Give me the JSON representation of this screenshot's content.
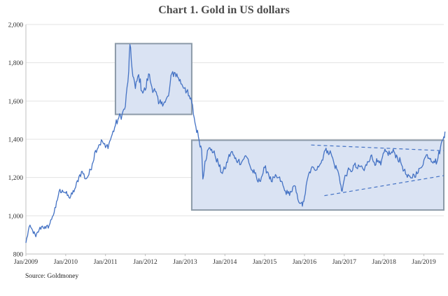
{
  "chart_data": {
    "type": "line",
    "title": "Chart 1. Gold in US dollars",
    "source": "Source: Goldmoney",
    "xlabel": "",
    "ylabel": "",
    "ylim": [
      800,
      2000
    ],
    "yticks": [
      800,
      1000,
      1200,
      1400,
      1600,
      1800,
      2000
    ],
    "ytick_labels": [
      "800",
      "1,000",
      "1,200",
      "1,400",
      "1,600",
      "1,800",
      "2,000"
    ],
    "xlim": [
      "2009-01",
      "2019-07"
    ],
    "xticks": [
      "2009-01",
      "2010-01",
      "2011-01",
      "2012-01",
      "2013-01",
      "2014-01",
      "2015-01",
      "2016-01",
      "2017-01",
      "2018-01",
      "2019-01"
    ],
    "xtick_labels": [
      "Jan/2009",
      "Jan/2010",
      "Jan/2011",
      "Jan/2012",
      "Jan/2013",
      "Jan/2014",
      "Jan/2015",
      "Jan/2016",
      "Jan/2017",
      "Jan/2018",
      "Jan/2019"
    ],
    "grid": "horizontal",
    "legend": "none",
    "colors": {
      "line": "#4472c4",
      "box_fill": "#dae3f3",
      "box_stroke": "#8c9aa8",
      "grid": "#e3e3e3",
      "axis": "#bfbfbf"
    },
    "series": [
      {
        "x": [
          "2009-01",
          "2009-02",
          "2009-03",
          "2009-04",
          "2009-05",
          "2009-06",
          "2009-07",
          "2009-08",
          "2009-09",
          "2009-10",
          "2009-11",
          "2009-12",
          "2010-01",
          "2010-02",
          "2010-03",
          "2010-04",
          "2010-05",
          "2010-06",
          "2010-07",
          "2010-08",
          "2010-09",
          "2010-10",
          "2010-11",
          "2010-12",
          "2011-01",
          "2011-02",
          "2011-03",
          "2011-04",
          "2011-05",
          "2011-06",
          "2011-07",
          "2011-08",
          "2011-09",
          "2011-10",
          "2011-11",
          "2011-12",
          "2012-01",
          "2012-02",
          "2012-03",
          "2012-04",
          "2012-05",
          "2012-06",
          "2012-07",
          "2012-08",
          "2012-09",
          "2012-10",
          "2012-11",
          "2012-12",
          "2013-01",
          "2013-02",
          "2013-03",
          "2013-04",
          "2013-05",
          "2013-06",
          "2013-07",
          "2013-08",
          "2013-09",
          "2013-10",
          "2013-11",
          "2013-12",
          "2014-01",
          "2014-02",
          "2014-03",
          "2014-04",
          "2014-05",
          "2014-06",
          "2014-07",
          "2014-08",
          "2014-09",
          "2014-10",
          "2014-11",
          "2014-12",
          "2015-01",
          "2015-02",
          "2015-03",
          "2015-04",
          "2015-05",
          "2015-06",
          "2015-07",
          "2015-08",
          "2015-09",
          "2015-10",
          "2015-11",
          "2015-12",
          "2016-01",
          "2016-02",
          "2016-03",
          "2016-04",
          "2016-05",
          "2016-06",
          "2016-07",
          "2016-08",
          "2016-09",
          "2016-10",
          "2016-11",
          "2016-12",
          "2017-01",
          "2017-02",
          "2017-03",
          "2017-04",
          "2017-05",
          "2017-06",
          "2017-07",
          "2017-08",
          "2017-09",
          "2017-10",
          "2017-11",
          "2017-12",
          "2018-01",
          "2018-02",
          "2018-03",
          "2018-04",
          "2018-05",
          "2018-06",
          "2018-07",
          "2018-08",
          "2018-09",
          "2018-10",
          "2018-11",
          "2018-12",
          "2019-01",
          "2019-02",
          "2019-03",
          "2019-04",
          "2019-05",
          "2019-06",
          "2019-07"
        ],
        "values": [
          858,
          943,
          924,
          890,
          928,
          946,
          934,
          949,
          996,
          1043,
          1127,
          1134,
          1118,
          1095,
          1113,
          1149,
          1205,
          1232,
          1193,
          1215,
          1271,
          1342,
          1370,
          1391,
          1356,
          1374,
          1424,
          1473,
          1512,
          1529,
          1572,
          1756,
          1771,
          1665,
          1738,
          1652,
          1656,
          1742,
          1673,
          1650,
          1585,
          1596,
          1593,
          1626,
          1744,
          1747,
          1721,
          1688,
          1670,
          1627,
          1593,
          1485,
          1414,
          1343,
          1286,
          1347,
          1348,
          1316,
          1275,
          1225,
          1244,
          1300,
          1336,
          1299,
          1288,
          1279,
          1311,
          1296,
          1239,
          1222,
          1176,
          1201,
          1251,
          1227,
          1179,
          1199,
          1199,
          1181,
          1131,
          1117,
          1125,
          1157,
          1086,
          1068,
          1097,
          1199,
          1246,
          1242,
          1259,
          1276,
          1337,
          1340,
          1326,
          1267,
          1238,
          1157,
          1192,
          1234,
          1231,
          1266,
          1246,
          1260,
          1236,
          1283,
          1314,
          1280,
          1282,
          1265,
          1331,
          1330,
          1325,
          1335,
          1304,
          1281,
          1238,
          1201,
          1198,
          1215,
          1220,
          1250,
          1291,
          1320,
          1300,
          1286,
          1284,
          1359,
          1413
        ],
        "annotations": [
          {
            "x": "2011-08",
            "y": 1895
          },
          {
            "x": "2013-06",
            "y": 1192
          },
          {
            "x": "2015-12",
            "y": 1050
          },
          {
            "x": "2016-12",
            "y": 1128
          },
          {
            "x": "2019-07",
            "y": 1440
          }
        ]
      }
    ],
    "boxes": [
      {
        "x_start": "2011-04",
        "x_end": "2013-03",
        "y_low": 1530,
        "y_high": 1900
      },
      {
        "x_start": "2013-03",
        "x_end": "2019-07",
        "y_low": 1030,
        "y_high": 1395
      }
    ],
    "trendlines": [
      {
        "x_start": "2016-03",
        "y_start": 1370,
        "x_end": "2019-07",
        "y_end": 1340
      },
      {
        "x_start": "2016-07",
        "y_start": 1105,
        "x_end": "2019-07",
        "y_end": 1210
      }
    ]
  }
}
